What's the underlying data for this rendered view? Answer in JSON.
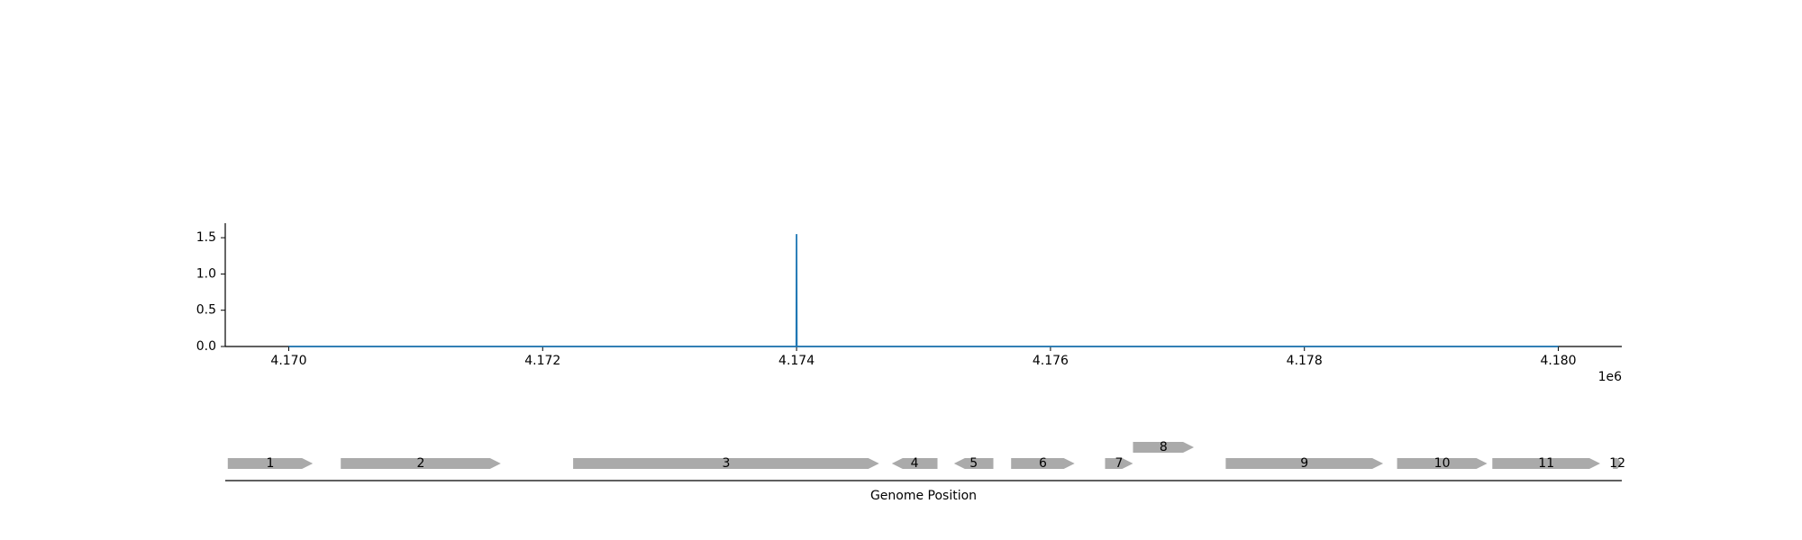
{
  "chart_data": [
    {
      "type": "line",
      "x": [
        4170000,
        4173998,
        4174000,
        4174002,
        4180000
      ],
      "y": [
        0.0,
        0.0,
        1.55,
        0.0,
        0.0
      ],
      "xlim": [
        4169500,
        4180500
      ],
      "ylim": [
        0.0,
        1.7
      ],
      "xticks": [
        4170000,
        4172000,
        4174000,
        4176000,
        4178000,
        4180000
      ],
      "xtick_labels": [
        "4.170",
        "4.172",
        "4.174",
        "4.176",
        "4.178",
        "4.180"
      ],
      "yticks": [
        0.0,
        0.5,
        1.0,
        1.5
      ],
      "ytick_labels": [
        "0.0",
        "0.5",
        "1.0",
        "1.5"
      ],
      "offset_label": "1e6",
      "color": "#1f77b4",
      "grid": false
    },
    {
      "type": "gene_map",
      "xlabel": "Genome Position",
      "xlim": [
        4169500,
        4180500
      ],
      "color": "#aaaaaa",
      "genes": [
        {
          "label": "1",
          "start": 4169520,
          "end": 4170190,
          "strand": 1,
          "track": 0
        },
        {
          "label": "2",
          "start": 4170410,
          "end": 4171670,
          "strand": 1,
          "track": 0
        },
        {
          "label": "3",
          "start": 4172240,
          "end": 4174650,
          "strand": 1,
          "track": 0
        },
        {
          "label": "4",
          "start": 4174750,
          "end": 4175110,
          "strand": -1,
          "track": 0
        },
        {
          "label": "5",
          "start": 4175240,
          "end": 4175550,
          "strand": -1,
          "track": 0
        },
        {
          "label": "6",
          "start": 4175690,
          "end": 4176190,
          "strand": 1,
          "track": 0
        },
        {
          "label": "7",
          "start": 4176430,
          "end": 4176650,
          "strand": 1,
          "track": 0
        },
        {
          "label": "8",
          "start": 4176650,
          "end": 4177130,
          "strand": 1,
          "track": 1
        },
        {
          "label": "9",
          "start": 4177380,
          "end": 4178620,
          "strand": 1,
          "track": 0
        },
        {
          "label": "10",
          "start": 4178730,
          "end": 4179440,
          "strand": 1,
          "track": 0
        },
        {
          "label": "11",
          "start": 4179480,
          "end": 4180330,
          "strand": 1,
          "track": 0
        },
        {
          "label": "12",
          "start": 4180430,
          "end": 4180500,
          "strand": 1,
          "track": 0
        }
      ]
    }
  ]
}
